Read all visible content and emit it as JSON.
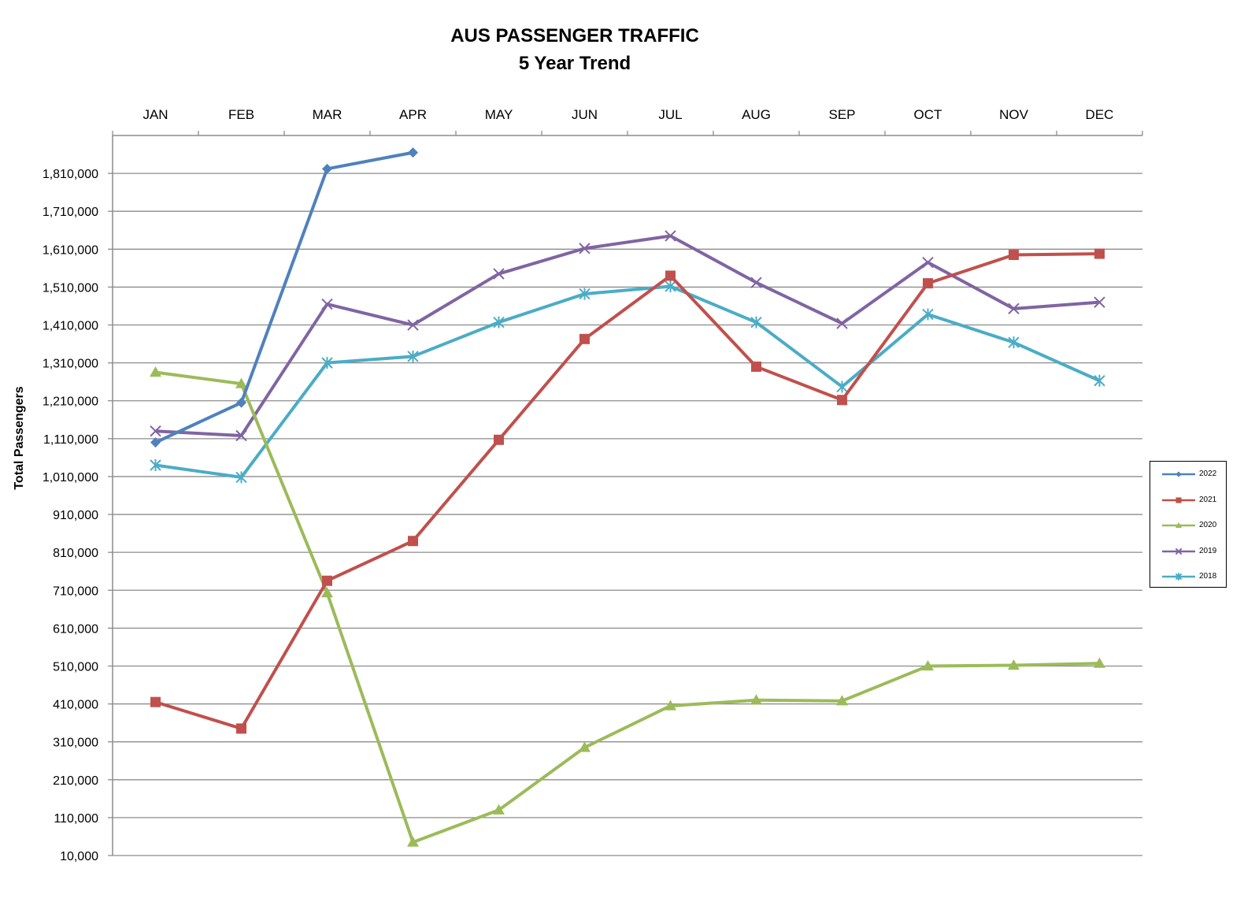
{
  "chart_data": {
    "type": "line",
    "title": [
      "AUS PASSENGER TRAFFIC",
      "5 Year Trend"
    ],
    "ylabel": "Total Passengers",
    "xlabel": "",
    "categories": [
      "JAN",
      "FEB",
      "MAR",
      "APR",
      "MAY",
      "JUN",
      "JUL",
      "AUG",
      "SEP",
      "OCT",
      "NOV",
      "DEC"
    ],
    "ylim": [
      10000,
      1910000
    ],
    "yticks": [
      10000,
      110000,
      210000,
      310000,
      410000,
      510000,
      610000,
      710000,
      810000,
      910000,
      1010000,
      1110000,
      1210000,
      1310000,
      1410000,
      1510000,
      1610000,
      1710000,
      1810000
    ],
    "ytick_labels": [
      "10,000",
      "110,000",
      "210,000",
      "310,000",
      "410,000",
      "510,000",
      "610,000",
      "710,000",
      "810,000",
      "910,000",
      "1,010,000",
      "1,110,000",
      "1,210,000",
      "1,310,000",
      "1,410,000",
      "1,510,000",
      "1,610,000",
      "1,710,000",
      "1,810,000"
    ],
    "grid": true,
    "legend_position": "right",
    "series": [
      {
        "name": "2022",
        "color": "#4F81BD",
        "marker": "diamond",
        "values": [
          1100000,
          1205000,
          1822000,
          1865000,
          null,
          null,
          null,
          null,
          null,
          null,
          null,
          null
        ]
      },
      {
        "name": "2021",
        "color": "#C0504D",
        "marker": "square",
        "values": [
          415000,
          345000,
          735000,
          840000,
          1107000,
          1373000,
          1540000,
          1300000,
          1212000,
          1520000,
          1595000,
          1598000
        ]
      },
      {
        "name": "2020",
        "color": "#9BBB59",
        "marker": "triangle",
        "values": [
          1285000,
          1255000,
          703000,
          45000,
          130000,
          295000,
          405000,
          420000,
          418000,
          510000,
          512000,
          517000
        ]
      },
      {
        "name": "2019",
        "color": "#8064A2",
        "marker": "x",
        "values": [
          1130000,
          1118000,
          1465000,
          1410000,
          1545000,
          1612000,
          1645000,
          1522000,
          1414000,
          1575000,
          1453000,
          1470000
        ]
      },
      {
        "name": "2018",
        "color": "#4BACC6",
        "marker": "star",
        "values": [
          1040000,
          1008000,
          1310000,
          1327000,
          1417000,
          1492000,
          1512000,
          1417000,
          1247000,
          1438000,
          1364000,
          1263000
        ]
      }
    ]
  }
}
